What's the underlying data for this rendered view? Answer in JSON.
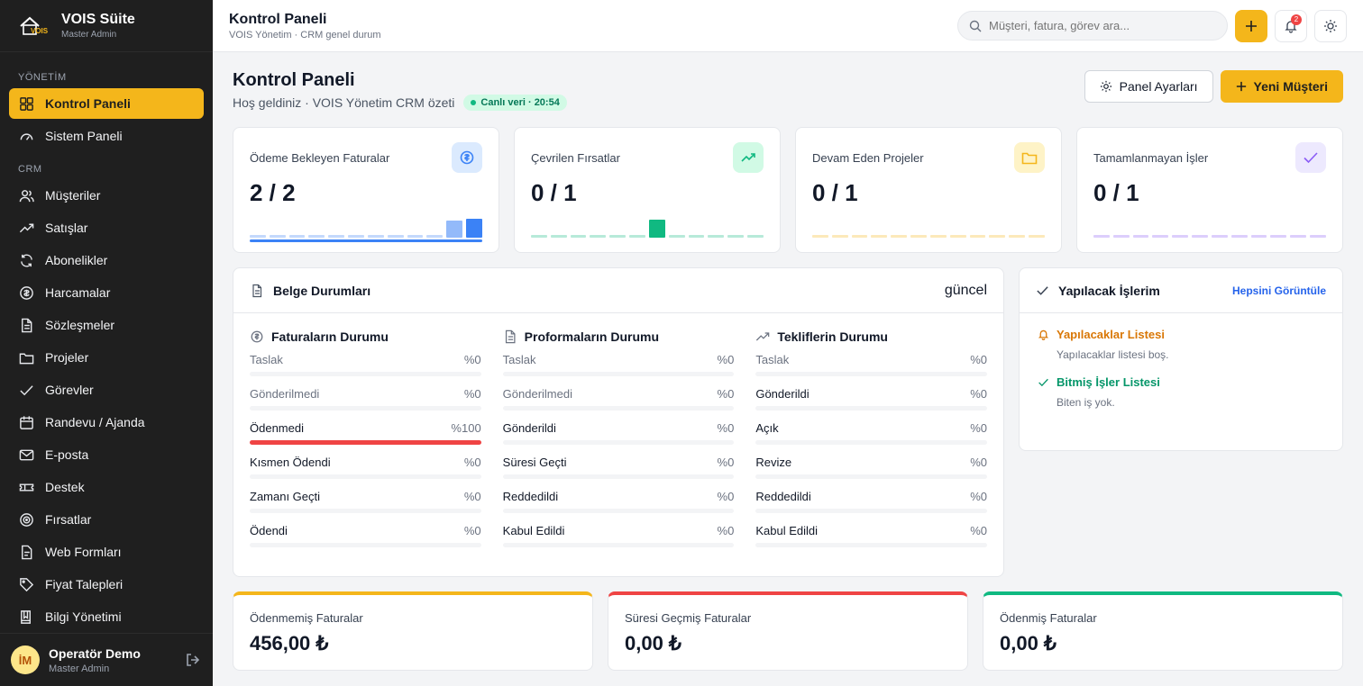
{
  "brand": {
    "title": "VOIS Süite",
    "subtitle": "Master Admin"
  },
  "sidebar": {
    "sections": [
      {
        "label": "YÖNETİM",
        "items": [
          {
            "label": "Kontrol Paneli",
            "icon": "grid-icon",
            "active": true
          },
          {
            "label": "Sistem Paneli",
            "icon": "gauge-icon"
          }
        ]
      },
      {
        "label": "CRM",
        "items": [
          {
            "label": "Müşteriler",
            "icon": "users-icon"
          },
          {
            "label": "Satışlar",
            "icon": "trend-icon"
          },
          {
            "label": "Abonelikler",
            "icon": "refresh-icon"
          },
          {
            "label": "Harcamalar",
            "icon": "coin-icon"
          },
          {
            "label": "Sözleşmeler",
            "icon": "document-icon"
          },
          {
            "label": "Projeler",
            "icon": "folder-icon"
          },
          {
            "label": "Görevler",
            "icon": "check-icon"
          },
          {
            "label": "Randevu / Ajanda",
            "icon": "calendar-icon"
          },
          {
            "label": "E-posta",
            "icon": "mail-icon"
          },
          {
            "label": "Destek",
            "icon": "ticket-icon"
          },
          {
            "label": "Fırsatlar",
            "icon": "target-icon"
          },
          {
            "label": "Web Formları",
            "icon": "form-icon"
          },
          {
            "label": "Fiyat Talepleri",
            "icon": "tag-icon"
          },
          {
            "label": "Bilgi Yönetimi",
            "icon": "book-icon"
          }
        ]
      }
    ]
  },
  "user": {
    "initials": "İM",
    "name": "Operatör Demo",
    "role": "Master Admin"
  },
  "topbar": {
    "title": "Kontrol Paneli",
    "subtitle": "VOIS Yönetim · CRM genel durum",
    "search_placeholder": "Müşteri, fatura, görev ara...",
    "notifications": "2"
  },
  "header": {
    "title": "Kontrol Paneli",
    "subtitle": "Hoş geldiniz · VOIS Yönetim CRM özeti",
    "live": "Canlı veri · 20:54",
    "settings_label": "Panel Ayarları",
    "new_customer_label": "Yeni Müşteri"
  },
  "kpis": [
    {
      "label": "Ödeme Bekleyen Faturalar",
      "value": "2 / 2",
      "icon": "dollar-icon",
      "color": "#3b82f6",
      "bg": "#dbeafe",
      "progress": 1.0,
      "spark": [
        0,
        0,
        0,
        0,
        0,
        0,
        0,
        0,
        0,
        0,
        0.85,
        0.95
      ]
    },
    {
      "label": "Çevrilen Fırsatlar",
      "value": "0 / 1",
      "icon": "trending-up-icon",
      "color": "#10b981",
      "bg": "#d1fae5",
      "progress": 0.0,
      "spark": [
        0,
        0,
        0,
        0,
        0,
        0,
        0.9,
        0,
        0,
        0,
        0,
        0
      ]
    },
    {
      "label": "Devam Eden Projeler",
      "value": "0 / 1",
      "icon": "folder-icon",
      "color": "#f4b61b",
      "bg": "#fef3c7",
      "progress": 0.0,
      "spark": [
        0,
        0,
        0,
        0,
        0,
        0,
        0,
        0,
        0,
        0,
        0,
        0
      ]
    },
    {
      "label": "Tamamlanmayan İşler",
      "value": "0 / 1",
      "icon": "check-icon",
      "color": "#8b5cf6",
      "bg": "#ede9fe",
      "progress": 0.0,
      "spark": [
        0,
        0,
        0,
        0,
        0,
        0,
        0,
        0,
        0,
        0,
        0,
        0
      ]
    }
  ],
  "documents": {
    "title": "Belge Durumları",
    "status": "güncel",
    "columns": [
      {
        "title": "Faturaların Durumu",
        "icon": "dollar-icon",
        "rows": [
          {
            "label": "Taslak",
            "value": "%0",
            "pct": 0
          },
          {
            "label": "Gönderilmedi",
            "value": "%0",
            "pct": 0
          },
          {
            "label": "Ödenmedi",
            "value": "%100",
            "pct": 100
          },
          {
            "label": "Kısmen Ödendi",
            "value": "%0",
            "pct": 0
          },
          {
            "label": "Zamanı Geçti",
            "value": "%0",
            "pct": 0
          },
          {
            "label": "Ödendi",
            "value": "%0",
            "pct": 0
          }
        ]
      },
      {
        "title": "Proformaların Durumu",
        "icon": "document-icon",
        "rows": [
          {
            "label": "Taslak",
            "value": "%0",
            "pct": 0
          },
          {
            "label": "Gönderilmedi",
            "value": "%0",
            "pct": 0
          },
          {
            "label": "Gönderildi",
            "value": "%0",
            "pct": 0
          },
          {
            "label": "Süresi Geçti",
            "value": "%0",
            "pct": 0
          },
          {
            "label": "Reddedildi",
            "value": "%0",
            "pct": 0
          },
          {
            "label": "Kabul Edildi",
            "value": "%0",
            "pct": 0
          }
        ]
      },
      {
        "title": "Tekliflerin Durumu",
        "icon": "trend-icon",
        "rows": [
          {
            "label": "Taslak",
            "value": "%0",
            "pct": 0
          },
          {
            "label": "Gönderildi",
            "value": "%0",
            "pct": 0
          },
          {
            "label": "Açık",
            "value": "%0",
            "pct": 0
          },
          {
            "label": "Revize",
            "value": "%0",
            "pct": 0
          },
          {
            "label": "Reddedildi",
            "value": "%0",
            "pct": 0
          },
          {
            "label": "Kabul Edildi",
            "value": "%0",
            "pct": 0
          }
        ]
      }
    ]
  },
  "todo": {
    "title": "Yapılacak İşlerim",
    "link": "Hepsini Görüntüle",
    "lists": [
      {
        "title": "Yapılacaklar Listesi",
        "empty": "Yapılacaklar listesi boş.",
        "color": "#d97706",
        "icon": "bell-icon"
      },
      {
        "title": "Bitmiş İşler Listesi",
        "empty": "Biten iş yok.",
        "color": "#059669",
        "icon": "check-icon"
      }
    ]
  },
  "totals": [
    {
      "label": "Ödenmemiş Faturalar",
      "value": "456,00 ₺",
      "color": "#f4b61b"
    },
    {
      "label": "Süresi Geçmiş Faturalar",
      "value": "0,00 ₺",
      "color": "#ef4444"
    },
    {
      "label": "Ödenmiş Faturalar",
      "value": "0,00 ₺",
      "color": "#10b981"
    }
  ]
}
